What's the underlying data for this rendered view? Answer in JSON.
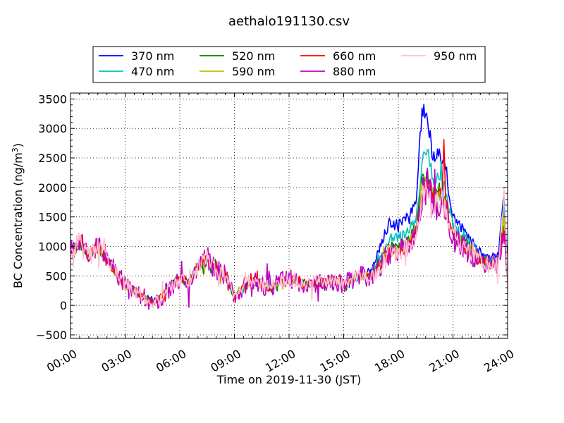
{
  "chart_data": {
    "type": "line",
    "title": "aethalo191130.csv",
    "xlabel": "Time on 2019-11-30 (JST)",
    "ylabel": "BC Concentration (ng/m",
    "ylabel_sup": "3",
    "ylabel_end": ")",
    "xlim": [
      0,
      24
    ],
    "ylim": [
      -560,
      3600
    ],
    "x_ticks": [
      {
        "v": 0,
        "label": "00:00"
      },
      {
        "v": 3,
        "label": "03:00"
      },
      {
        "v": 6,
        "label": "06:00"
      },
      {
        "v": 9,
        "label": "09:00"
      },
      {
        "v": 12,
        "label": "12:00"
      },
      {
        "v": 15,
        "label": "15:00"
      },
      {
        "v": 18,
        "label": "18:00"
      },
      {
        "v": 21,
        "label": "21:00"
      },
      {
        "v": 24,
        "label": "24:00"
      }
    ],
    "y_ticks": [
      {
        "v": -500,
        "label": "−500"
      },
      {
        "v": 0,
        "label": "0"
      },
      {
        "v": 500,
        "label": "500"
      },
      {
        "v": 1000,
        "label": "1000"
      },
      {
        "v": 1500,
        "label": "1500"
      },
      {
        "v": 2000,
        "label": "2000"
      },
      {
        "v": 2500,
        "label": "2500"
      },
      {
        "v": 3000,
        "label": "3000"
      },
      {
        "v": 3500,
        "label": "3500"
      }
    ],
    "grid": true,
    "legend_position": "top",
    "series": [
      {
        "name": "370 nm",
        "color": "#0000ff",
        "noise": 45,
        "scale": 1.0,
        "x": [
          0,
          0.5,
          1,
          1.5,
          2,
          2.5,
          3,
          3.5,
          4,
          4.5,
          5,
          5.5,
          6,
          6.5,
          7,
          7.5,
          8,
          8.5,
          9,
          9.5,
          10,
          10.5,
          11,
          11.5,
          12,
          12.5,
          13,
          13.5,
          14,
          14.5,
          15,
          15.5,
          16,
          16.5,
          17,
          17.5,
          18,
          18.5,
          19,
          19.3,
          19.6,
          19.9,
          20.2,
          20.5,
          20.8,
          21,
          21.3,
          21.6,
          22,
          22.5,
          23,
          23.5,
          23.8,
          24
        ],
        "y": [
          950,
          1050,
          850,
          1000,
          800,
          550,
          350,
          250,
          150,
          50,
          150,
          350,
          450,
          400,
          650,
          800,
          600,
          500,
          150,
          300,
          400,
          350,
          300,
          400,
          450,
          400,
          350,
          380,
          400,
          420,
          350,
          450,
          500,
          600,
          1000,
          1400,
          1400,
          1500,
          1800,
          3350,
          3200,
          2500,
          2600,
          2400,
          1900,
          1500,
          1400,
          1300,
          1100,
          900,
          800,
          850,
          1900,
          600
        ]
      },
      {
        "name": "470 nm",
        "color": "#00bfbf",
        "noise": 50,
        "scale": 1.0,
        "x": [
          0,
          0.5,
          1,
          1.5,
          2,
          2.5,
          3,
          3.5,
          4,
          4.5,
          5,
          5.5,
          6,
          6.5,
          7,
          7.5,
          8,
          8.5,
          9,
          9.5,
          10,
          10.5,
          11,
          11.5,
          12,
          12.5,
          13,
          13.5,
          14,
          14.5,
          15,
          15.5,
          16,
          16.5,
          17,
          17.5,
          18,
          18.5,
          19,
          19.3,
          19.6,
          19.9,
          20.2,
          20.5,
          20.8,
          21,
          21.3,
          21.6,
          22,
          22.5,
          23,
          23.5,
          23.8,
          24
        ],
        "y": [
          950,
          1050,
          850,
          1000,
          800,
          550,
          350,
          250,
          150,
          50,
          150,
          350,
          450,
          400,
          650,
          800,
          600,
          500,
          150,
          300,
          400,
          350,
          300,
          400,
          450,
          400,
          350,
          380,
          400,
          420,
          350,
          450,
          500,
          550,
          850,
          1150,
          1150,
          1250,
          1500,
          2450,
          2600,
          2150,
          2200,
          2050,
          1650,
          1350,
          1250,
          1200,
          1000,
          850,
          750,
          800,
          1600,
          550
        ]
      },
      {
        "name": "520 nm",
        "color": "#008000",
        "noise": 55,
        "scale": 1.0,
        "x": [
          0,
          0.5,
          1,
          1.5,
          2,
          2.5,
          3,
          3.5,
          4,
          4.5,
          5,
          5.5,
          6,
          6.5,
          7,
          7.5,
          8,
          8.5,
          9,
          9.5,
          10,
          10.5,
          11,
          11.5,
          12,
          12.5,
          13,
          13.5,
          14,
          14.5,
          15,
          15.5,
          16,
          16.5,
          17,
          17.5,
          18,
          18.5,
          19,
          19.3,
          19.6,
          19.9,
          20.2,
          20.5,
          20.8,
          21,
          21.3,
          21.6,
          22,
          22.5,
          23,
          23.5,
          23.8,
          24
        ],
        "y": [
          950,
          1050,
          850,
          1000,
          800,
          550,
          350,
          250,
          150,
          50,
          150,
          350,
          450,
          400,
          650,
          800,
          600,
          500,
          150,
          300,
          400,
          350,
          300,
          400,
          450,
          400,
          350,
          380,
          400,
          420,
          350,
          450,
          500,
          520,
          750,
          1000,
          1000,
          1100,
          1350,
          2150,
          2200,
          1900,
          1950,
          1800,
          1500,
          1250,
          1150,
          1100,
          950,
          800,
          700,
          750,
          1500,
          500
        ]
      },
      {
        "name": "590 nm",
        "color": "#bfbf00",
        "noise": 60,
        "scale": 1.0,
        "x": [
          0,
          0.5,
          1,
          1.5,
          2,
          2.5,
          3,
          3.5,
          4,
          4.5,
          5,
          5.5,
          6,
          6.5,
          7,
          7.5,
          8,
          8.5,
          9,
          9.5,
          10,
          10.5,
          11,
          11.5,
          12,
          12.5,
          13,
          13.5,
          14,
          14.5,
          15,
          15.5,
          16,
          16.5,
          17,
          17.5,
          18,
          18.5,
          19,
          19.3,
          19.6,
          19.9,
          20.2,
          20.5,
          20.8,
          21,
          21.3,
          21.6,
          22,
          22.5,
          23,
          23.5,
          23.8,
          24
        ],
        "y": [
          950,
          1050,
          850,
          1000,
          800,
          550,
          350,
          250,
          150,
          50,
          150,
          350,
          450,
          400,
          650,
          800,
          600,
          500,
          150,
          300,
          400,
          350,
          300,
          400,
          450,
          400,
          350,
          380,
          400,
          420,
          350,
          450,
          500,
          500,
          700,
          950,
          950,
          1050,
          1300,
          2050,
          2100,
          1850,
          1900,
          1750,
          1450,
          1200,
          1100,
          1050,
          900,
          780,
          680,
          730,
          1450,
          480
        ]
      },
      {
        "name": "660 nm",
        "color": "#ff0000",
        "noise": 65,
        "scale": 1.0,
        "x": [
          0,
          0.5,
          1,
          1.5,
          2,
          2.5,
          3,
          3.5,
          4,
          4.5,
          5,
          5.5,
          6,
          6.5,
          7,
          7.5,
          8,
          8.5,
          9,
          9.5,
          10,
          10.5,
          11,
          11.5,
          12,
          12.5,
          13,
          13.5,
          14,
          14.5,
          15,
          15.5,
          16,
          16.5,
          17,
          17.5,
          18,
          18.5,
          19,
          19.3,
          19.6,
          19.9,
          20.2,
          20.4,
          20.5,
          20.6,
          20.8,
          21,
          21.3,
          21.6,
          22,
          22.5,
          23,
          23.5,
          23.8,
          24
        ],
        "y": [
          950,
          1050,
          850,
          1000,
          800,
          550,
          350,
          250,
          150,
          50,
          150,
          350,
          450,
          400,
          650,
          800,
          600,
          500,
          150,
          300,
          400,
          350,
          300,
          400,
          450,
          400,
          350,
          380,
          400,
          420,
          350,
          450,
          500,
          480,
          650,
          900,
          900,
          1000,
          1250,
          2000,
          2050,
          1800,
          1850,
          1900,
          3000,
          1800,
          1400,
          1150,
          1050,
          1000,
          880,
          760,
          660,
          710,
          1400,
          460
        ]
      },
      {
        "name": "880 nm",
        "color": "#bf00bf",
        "noise": 130,
        "scale": 1.0,
        "x": [
          0,
          0.5,
          1,
          1.5,
          2,
          2.5,
          3,
          3.5,
          4,
          4.5,
          5,
          5.5,
          6,
          6.5,
          7,
          7.5,
          8,
          8.5,
          9,
          9.5,
          10,
          10.5,
          11,
          11.5,
          12,
          12.5,
          13,
          13.5,
          14,
          14.5,
          15,
          15.5,
          16,
          16.5,
          17,
          17.5,
          18,
          18.5,
          19,
          19.3,
          19.6,
          19.9,
          20.2,
          20.5,
          20.8,
          21,
          21.3,
          21.6,
          22,
          22.5,
          23,
          23.5,
          23.8,
          24
        ],
        "y": [
          950,
          1050,
          850,
          1000,
          800,
          550,
          350,
          250,
          100,
          0,
          100,
          300,
          450,
          400,
          650,
          800,
          600,
          500,
          150,
          300,
          400,
          350,
          300,
          400,
          450,
          400,
          350,
          380,
          400,
          420,
          350,
          450,
          500,
          480,
          650,
          900,
          900,
          1000,
          1250,
          1900,
          2000,
          1750,
          1800,
          1700,
          1400,
          1150,
          1050,
          1000,
          880,
          760,
          660,
          710,
          1350,
          460
        ]
      },
      {
        "name": "950 nm",
        "color": "#ffc0cb",
        "noise": 90,
        "scale": 1.0,
        "x": [
          0,
          0.5,
          1,
          1.5,
          2,
          2.5,
          3,
          3.5,
          4,
          4.5,
          5,
          5.5,
          6,
          6.5,
          7,
          7.5,
          8,
          8.5,
          9,
          9.5,
          10,
          10.5,
          11,
          11.5,
          12,
          12.5,
          13,
          13.5,
          14,
          14.5,
          15,
          15.5,
          16,
          16.5,
          17,
          17.5,
          18,
          18.5,
          19,
          19.3,
          19.6,
          19.9,
          20.2,
          20.5,
          20.8,
          21,
          21.3,
          21.6,
          22,
          22.5,
          23,
          23.5,
          23.8,
          24
        ],
        "y": [
          950,
          1100,
          850,
          1000,
          800,
          550,
          350,
          250,
          120,
          20,
          120,
          320,
          450,
          400,
          650,
          800,
          600,
          500,
          150,
          300,
          400,
          350,
          300,
          400,
          450,
          400,
          350,
          380,
          400,
          420,
          350,
          450,
          500,
          470,
          640,
          880,
          880,
          980,
          1220,
          1850,
          1950,
          1700,
          1750,
          1650,
          1380,
          1130,
          1030,
          980,
          860,
          740,
          640,
          700,
          1950,
          300
        ]
      }
    ]
  }
}
